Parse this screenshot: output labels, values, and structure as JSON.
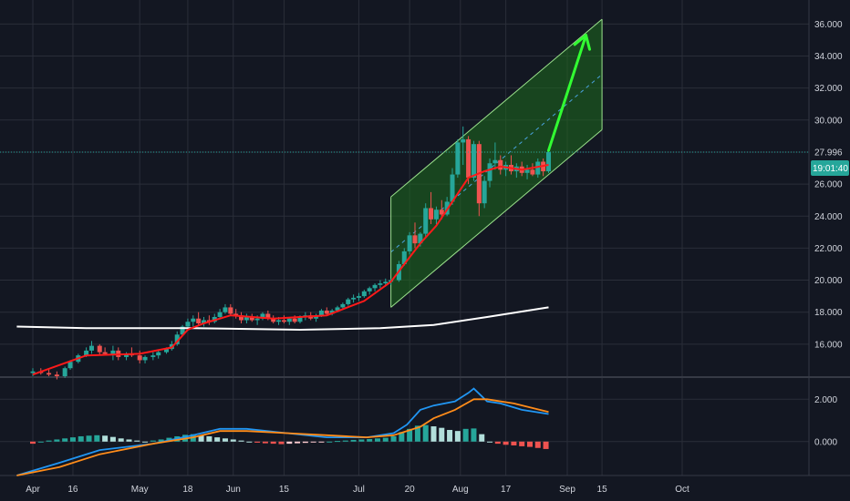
{
  "colors": {
    "background": "#131722",
    "grid": "#2a2e39",
    "axis_text": "#d1d4dc",
    "up": "#26a69a",
    "down": "#ef5350",
    "ema": "#ff1a1a",
    "long_ma": "#ffffff",
    "channel_fill": "#1e6b1e",
    "channel_line": "#9be28c",
    "arrow": "#32ff32",
    "macd_line": "#2196f3",
    "signal_line": "#ff8c1a",
    "hist_up_strong": "#26a69a",
    "hist_up_weak": "#b2dfdb",
    "hist_down_strong": "#ef5350",
    "hist_down_weak": "#ffcdd2",
    "price_label_bg": "#26a69a"
  },
  "chart_data": {
    "type": "candlestick",
    "price_axis": {
      "ticks": [
        "36.000",
        "34.000",
        "32.000",
        "30.000",
        "28.000",
        "26.000",
        "24.000",
        "22.000",
        "20.000",
        "18.000",
        "16.000"
      ],
      "tick_values": [
        36,
        34,
        32,
        30,
        28,
        26,
        24,
        22,
        20,
        18,
        16
      ],
      "ylim": [
        14,
        37.5
      ]
    },
    "macd_axis": {
      "ticks": [
        "2.000",
        "0.000"
      ],
      "tick_values": [
        2,
        0
      ],
      "ylim": [
        -1.6,
        3.0
      ]
    },
    "time_axis": {
      "ticks": [
        "Apr",
        "16",
        "May",
        "18",
        "Jun",
        "15",
        "Jul",
        "20",
        "Aug",
        "17",
        "Sep",
        "15",
        "Oct"
      ],
      "tick_days": [
        0,
        15,
        40,
        58,
        75,
        94,
        122,
        141,
        160,
        177,
        200,
        213,
        243
      ]
    },
    "last_price": "27.996",
    "countdown": "19:01:40",
    "candles": [
      [
        0,
        14.2,
        14.5,
        14.0,
        14.3
      ],
      [
        3,
        14.3,
        14.5,
        14.1,
        14.2
      ],
      [
        6,
        14.2,
        14.4,
        14.0,
        14.1
      ],
      [
        9,
        14.1,
        14.3,
        13.8,
        14.0
      ],
      [
        12,
        14.0,
        14.6,
        13.9,
        14.5
      ],
      [
        14,
        14.5,
        15.0,
        14.4,
        14.9
      ],
      [
        17,
        14.9,
        15.4,
        14.8,
        15.3
      ],
      [
        20,
        15.3,
        15.8,
        15.2,
        15.6
      ],
      [
        22,
        15.6,
        16.2,
        15.4,
        15.9
      ],
      [
        25,
        15.9,
        16.0,
        15.3,
        15.5
      ],
      [
        27,
        15.5,
        15.8,
        15.3,
        15.4
      ],
      [
        30,
        15.4,
        15.9,
        15.0,
        15.6
      ],
      [
        32,
        15.6,
        15.8,
        15.0,
        15.2
      ],
      [
        35,
        15.2,
        15.5,
        15.0,
        15.4
      ],
      [
        37,
        15.4,
        15.8,
        15.2,
        15.3
      ],
      [
        40,
        15.3,
        15.6,
        14.8,
        15.0
      ],
      [
        42,
        15.0,
        15.3,
        14.8,
        15.2
      ],
      [
        45,
        15.2,
        15.5,
        15.0,
        15.3
      ],
      [
        47,
        15.3,
        15.6,
        15.1,
        15.5
      ],
      [
        50,
        15.5,
        15.8,
        15.4,
        15.7
      ],
      [
        52,
        15.7,
        16.2,
        15.6,
        16.0
      ],
      [
        54,
        16.0,
        16.8,
        15.9,
        16.6
      ],
      [
        56,
        16.6,
        17.2,
        16.5,
        17.1
      ],
      [
        58,
        17.1,
        17.6,
        17.0,
        17.4
      ],
      [
        60,
        17.4,
        17.8,
        17.1,
        17.6
      ],
      [
        62,
        17.6,
        18.0,
        17.2,
        17.3
      ],
      [
        64,
        17.3,
        17.7,
        17.1,
        17.5
      ],
      [
        66,
        17.5,
        17.8,
        17.2,
        17.4
      ],
      [
        68,
        17.4,
        17.9,
        17.3,
        17.7
      ],
      [
        70,
        17.7,
        18.2,
        17.6,
        18.0
      ],
      [
        72,
        18.0,
        18.5,
        17.9,
        18.3
      ],
      [
        74,
        18.3,
        18.5,
        17.8,
        17.9
      ],
      [
        76,
        17.9,
        18.2,
        17.6,
        17.8
      ],
      [
        78,
        17.8,
        18.0,
        17.3,
        17.5
      ],
      [
        80,
        17.5,
        17.9,
        17.3,
        17.7
      ],
      [
        82,
        17.7,
        17.9,
        17.4,
        17.5
      ],
      [
        84,
        17.5,
        17.8,
        17.2,
        17.6
      ],
      [
        86,
        17.6,
        18.0,
        17.5,
        17.9
      ],
      [
        88,
        17.9,
        18.1,
        17.5,
        17.6
      ],
      [
        90,
        17.6,
        17.8,
        17.3,
        17.4
      ],
      [
        92,
        17.4,
        17.7,
        17.2,
        17.5
      ],
      [
        94,
        17.5,
        17.8,
        17.3,
        17.4
      ],
      [
        96,
        17.4,
        17.7,
        17.2,
        17.6
      ],
      [
        98,
        17.6,
        17.8,
        17.3,
        17.4
      ],
      [
        100,
        17.4,
        17.8,
        17.3,
        17.7
      ],
      [
        102,
        17.7,
        18.0,
        17.5,
        17.8
      ],
      [
        104,
        17.8,
        18.0,
        17.5,
        17.6
      ],
      [
        106,
        17.6,
        17.9,
        17.4,
        17.8
      ],
      [
        108,
        17.8,
        18.2,
        17.7,
        18.1
      ],
      [
        110,
        18.1,
        18.3,
        17.8,
        17.9
      ],
      [
        112,
        17.9,
        18.2,
        17.8,
        18.1
      ],
      [
        114,
        18.1,
        18.4,
        18.0,
        18.3
      ],
      [
        116,
        18.3,
        18.6,
        18.2,
        18.5
      ],
      [
        118,
        18.5,
        18.9,
        18.4,
        18.8
      ],
      [
        120,
        18.8,
        19.1,
        18.6,
        18.9
      ],
      [
        122,
        18.9,
        19.2,
        18.7,
        19.0
      ],
      [
        124,
        19.0,
        19.4,
        18.9,
        19.3
      ],
      [
        126,
        19.3,
        19.6,
        19.1,
        19.5
      ],
      [
        128,
        19.5,
        19.8,
        19.3,
        19.7
      ],
      [
        130,
        19.7,
        20.0,
        19.5,
        19.8
      ],
      [
        132,
        19.8,
        20.1,
        19.6,
        19.9
      ],
      [
        134,
        19.9,
        20.1,
        19.7,
        20.0
      ],
      [
        137,
        20.0,
        21.2,
        19.9,
        21.0
      ],
      [
        139,
        21.0,
        22.0,
        20.9,
        21.8
      ],
      [
        141,
        21.8,
        23.0,
        21.6,
        22.8
      ],
      [
        143,
        22.8,
        23.6,
        22.0,
        22.3
      ],
      [
        145,
        22.3,
        23.0,
        22.1,
        22.9
      ],
      [
        147,
        22.9,
        24.8,
        22.7,
        24.5
      ],
      [
        149,
        24.5,
        25.5,
        23.5,
        23.8
      ],
      [
        151,
        23.8,
        24.6,
        23.5,
        24.4
      ],
      [
        153,
        24.4,
        25.0,
        23.8,
        24.1
      ],
      [
        155,
        24.1,
        25.2,
        24.0,
        24.9
      ],
      [
        157,
        24.9,
        27.0,
        24.7,
        26.6
      ],
      [
        159,
        26.6,
        28.8,
        26.4,
        28.6
      ],
      [
        161,
        28.6,
        29.6,
        27.2,
        28.8
      ],
      [
        163,
        28.8,
        29.0,
        26.0,
        26.4
      ],
      [
        165,
        26.4,
        28.7,
        26.2,
        28.5
      ],
      [
        167,
        28.5,
        28.7,
        24.0,
        24.8
      ],
      [
        169,
        24.8,
        26.5,
        24.5,
        26.2
      ],
      [
        171,
        26.2,
        27.6,
        25.8,
        27.3
      ],
      [
        173,
        27.3,
        28.6,
        26.9,
        27.5
      ],
      [
        175,
        27.5,
        27.8,
        26.6,
        26.9
      ],
      [
        177,
        26.9,
        27.4,
        26.5,
        27.2
      ],
      [
        179,
        27.2,
        27.8,
        26.6,
        26.8
      ],
      [
        181,
        26.8,
        27.3,
        26.4,
        27.1
      ],
      [
        183,
        27.1,
        27.4,
        26.5,
        26.7
      ],
      [
        185,
        26.7,
        27.2,
        26.3,
        26.9
      ],
      [
        187,
        26.9,
        27.3,
        26.5,
        26.6
      ],
      [
        189,
        26.6,
        27.6,
        26.4,
        27.4
      ],
      [
        191,
        27.4,
        27.6,
        26.5,
        26.8
      ],
      [
        193,
        26.8,
        28.1,
        26.7,
        28.0
      ]
    ],
    "ema": [
      [
        0,
        14.1
      ],
      [
        20,
        15.3
      ],
      [
        40,
        15.4
      ],
      [
        52,
        15.8
      ],
      [
        58,
        16.9
      ],
      [
        64,
        17.3
      ],
      [
        74,
        17.8
      ],
      [
        90,
        17.6
      ],
      [
        110,
        17.8
      ],
      [
        124,
        18.7
      ],
      [
        134,
        19.9
      ],
      [
        139,
        21.0
      ],
      [
        145,
        22.3
      ],
      [
        151,
        23.4
      ],
      [
        157,
        24.9
      ],
      [
        163,
        26.4
      ],
      [
        169,
        26.8
      ],
      [
        175,
        27.1
      ],
      [
        183,
        26.9
      ],
      [
        193,
        27.2
      ]
    ],
    "long_ma": [
      [
        -6,
        17.1
      ],
      [
        20,
        17.0
      ],
      [
        60,
        17.0
      ],
      [
        100,
        16.9
      ],
      [
        130,
        17.0
      ],
      [
        150,
        17.2
      ],
      [
        170,
        17.7
      ],
      [
        193,
        18.3
      ]
    ],
    "channel": {
      "x_start": 134,
      "x_end": 213,
      "lower_start": 18.3,
      "lower_end": 29.4,
      "upper_start": 25.2,
      "upper_end": 36.3
    },
    "arrow": {
      "from": [
        193,
        28.1
      ],
      "to": [
        207,
        35.3
      ]
    },
    "macd": {
      "macd": [
        [
          -6,
          -1.6
        ],
        [
          10,
          -1.0
        ],
        [
          25,
          -0.4
        ],
        [
          45,
          -0.1
        ],
        [
          60,
          0.3
        ],
        [
          70,
          0.6
        ],
        [
          80,
          0.6
        ],
        [
          95,
          0.4
        ],
        [
          110,
          0.2
        ],
        [
          125,
          0.2
        ],
        [
          135,
          0.4
        ],
        [
          140,
          0.8
        ],
        [
          145,
          1.5
        ],
        [
          150,
          1.7
        ],
        [
          158,
          1.9
        ],
        [
          163,
          2.3
        ],
        [
          165,
          2.5
        ],
        [
          170,
          1.9
        ],
        [
          175,
          1.8
        ],
        [
          183,
          1.5
        ],
        [
          193,
          1.3
        ]
      ],
      "signal": [
        [
          -6,
          -1.6
        ],
        [
          10,
          -1.2
        ],
        [
          25,
          -0.6
        ],
        [
          45,
          -0.1
        ],
        [
          60,
          0.2
        ],
        [
          70,
          0.5
        ],
        [
          80,
          0.5
        ],
        [
          95,
          0.4
        ],
        [
          110,
          0.3
        ],
        [
          125,
          0.2
        ],
        [
          135,
          0.3
        ],
        [
          145,
          0.7
        ],
        [
          150,
          1.1
        ],
        [
          158,
          1.5
        ],
        [
          165,
          2.0
        ],
        [
          170,
          2.0
        ],
        [
          180,
          1.8
        ],
        [
          193,
          1.4
        ]
      ],
      "histogram": [
        [
          0,
          -0.1
        ],
        [
          3,
          0.0
        ],
        [
          6,
          0.05
        ],
        [
          9,
          0.1
        ],
        [
          12,
          0.15
        ],
        [
          15,
          0.2
        ],
        [
          18,
          0.25
        ],
        [
          21,
          0.28
        ],
        [
          24,
          0.3
        ],
        [
          27,
          0.28
        ],
        [
          30,
          0.22
        ],
        [
          33,
          0.15
        ],
        [
          36,
          0.1
        ],
        [
          39,
          0.05
        ],
        [
          42,
          0.0
        ],
        [
          45,
          0.05
        ],
        [
          48,
          0.1
        ],
        [
          51,
          0.18
        ],
        [
          54,
          0.25
        ],
        [
          57,
          0.32
        ],
        [
          60,
          0.35
        ],
        [
          63,
          0.3
        ],
        [
          66,
          0.25
        ],
        [
          69,
          0.2
        ],
        [
          72,
          0.15
        ],
        [
          75,
          0.1
        ],
        [
          78,
          0.05
        ],
        [
          81,
          0.0
        ],
        [
          84,
          -0.05
        ],
        [
          87,
          -0.08
        ],
        [
          90,
          -0.1
        ],
        [
          93,
          -0.12
        ],
        [
          96,
          -0.1
        ],
        [
          99,
          -0.08
        ],
        [
          102,
          -0.06
        ],
        [
          105,
          -0.04
        ],
        [
          108,
          -0.02
        ],
        [
          111,
          0.0
        ],
        [
          114,
          0.03
        ],
        [
          117,
          0.05
        ],
        [
          120,
          0.08
        ],
        [
          123,
          0.1
        ],
        [
          126,
          0.12
        ],
        [
          129,
          0.15
        ],
        [
          132,
          0.18
        ],
        [
          135,
          0.25
        ],
        [
          138,
          0.45
        ],
        [
          141,
          0.6
        ],
        [
          144,
          0.75
        ],
        [
          147,
          0.78
        ],
        [
          150,
          0.72
        ],
        [
          153,
          0.65
        ],
        [
          156,
          0.55
        ],
        [
          159,
          0.5
        ],
        [
          162,
          0.6
        ],
        [
          165,
          0.62
        ],
        [
          168,
          0.35
        ],
        [
          171,
          0.0
        ],
        [
          174,
          -0.1
        ],
        [
          177,
          -0.15
        ],
        [
          180,
          -0.18
        ],
        [
          183,
          -0.22
        ],
        [
          186,
          -0.25
        ],
        [
          189,
          -0.3
        ],
        [
          192,
          -0.35
        ]
      ]
    }
  }
}
